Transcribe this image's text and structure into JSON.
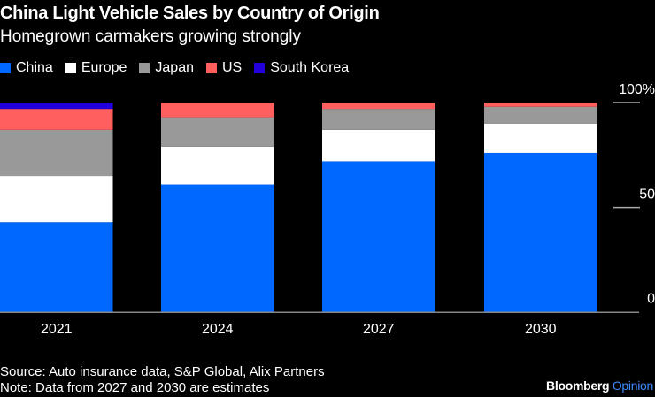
{
  "header": {
    "title": "China Light Vehicle Sales by Country of Origin",
    "subtitle": "Homegrown carmakers growing strongly"
  },
  "chart_data": {
    "type": "bar",
    "stacked": true,
    "categories": [
      "2021",
      "2024",
      "2027",
      "2030"
    ],
    "series": [
      {
        "name": "China",
        "color": "#0068ff",
        "values": [
          43,
          61,
          72,
          76
        ]
      },
      {
        "name": "Europe",
        "color": "#ffffff",
        "values": [
          22,
          18,
          15,
          14
        ]
      },
      {
        "name": "Japan",
        "color": "#999999",
        "values": [
          22,
          14,
          10,
          8
        ]
      },
      {
        "name": "US",
        "color": "#ff5f5f",
        "values": [
          10,
          7,
          3,
          2
        ]
      },
      {
        "name": "South Korea",
        "color": "#2200dd",
        "values": [
          3,
          0,
          0,
          0
        ]
      }
    ],
    "ylim": [
      0,
      100
    ],
    "yticks": [
      {
        "value": 100,
        "label": "100%"
      },
      {
        "value": 50,
        "label": "50"
      },
      {
        "value": 0,
        "label": "0"
      }
    ],
    "axis_position": "right",
    "legend_position": "top-left",
    "grid": false
  },
  "footer": {
    "source": "Source: Auto insurance data, S&P Global, Alix Partners",
    "note": "Note: Data from 2027 and 2030 are estimates",
    "brand_main": "Bloomberg",
    "brand_sub": "Opinion"
  }
}
